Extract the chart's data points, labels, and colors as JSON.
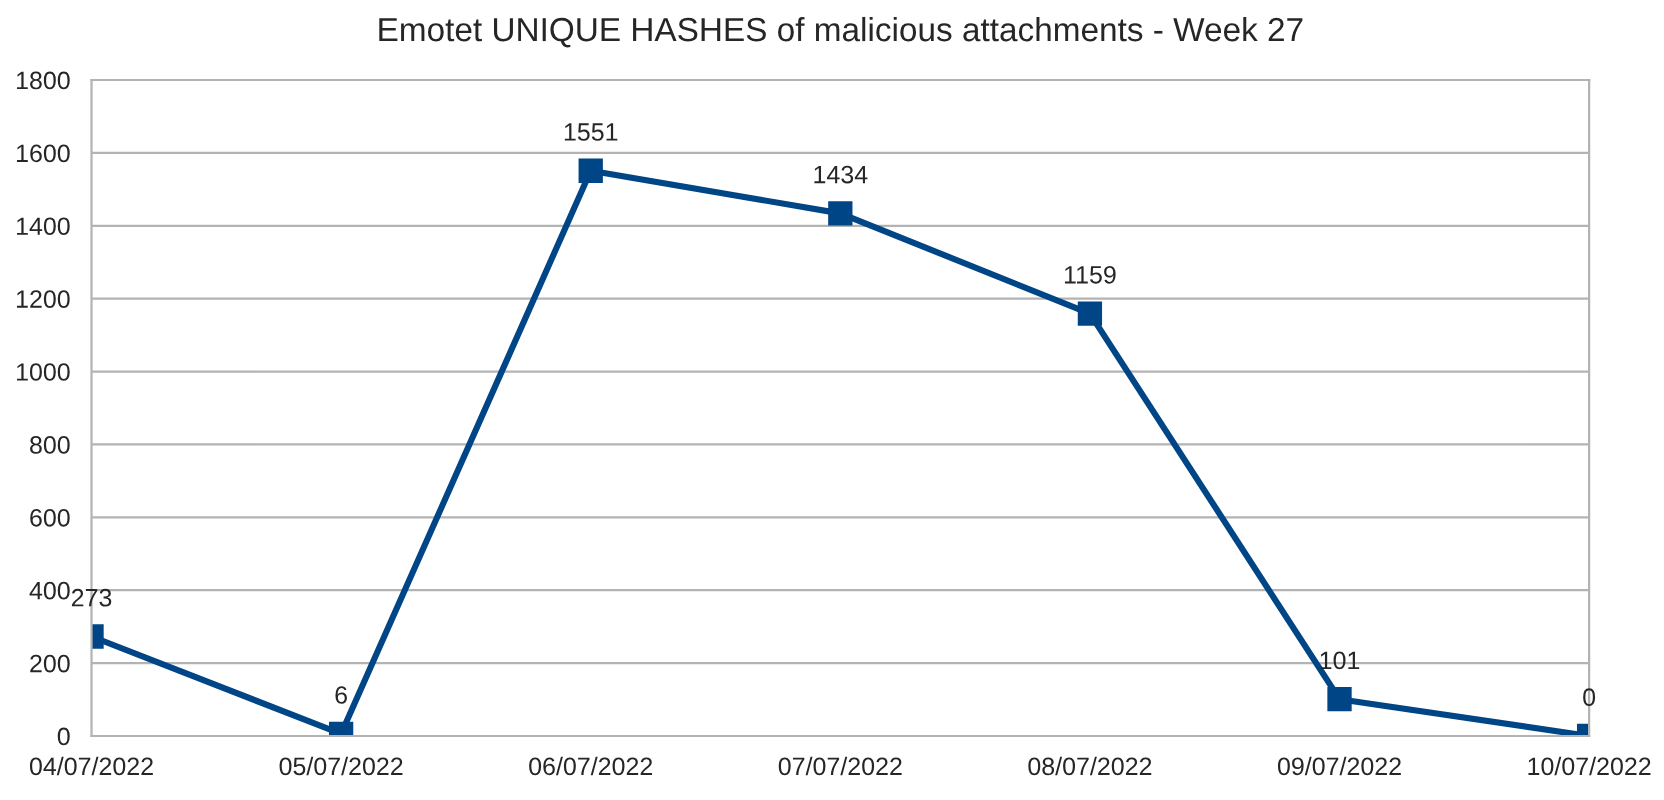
{
  "chart_data": {
    "type": "line",
    "title": "Emotet UNIQUE HASHES of malicious attachments - Week 27",
    "categories": [
      "04/07/2022",
      "05/07/2022",
      "06/07/2022",
      "07/07/2022",
      "08/07/2022",
      "09/07/2022",
      "10/07/2022"
    ],
    "series": [
      {
        "color": "#004586",
        "values": [
          273,
          6,
          1551,
          1434,
          1159,
          101,
          0
        ]
      }
    ],
    "ylim": [
      0,
      1800
    ],
    "yticks": [
      0,
      200,
      400,
      600,
      800,
      1000,
      1200,
      1400,
      1600,
      1800
    ],
    "grid": "y",
    "marker": "square",
    "line_style": "solid",
    "data_labels": true,
    "legend": false
  }
}
